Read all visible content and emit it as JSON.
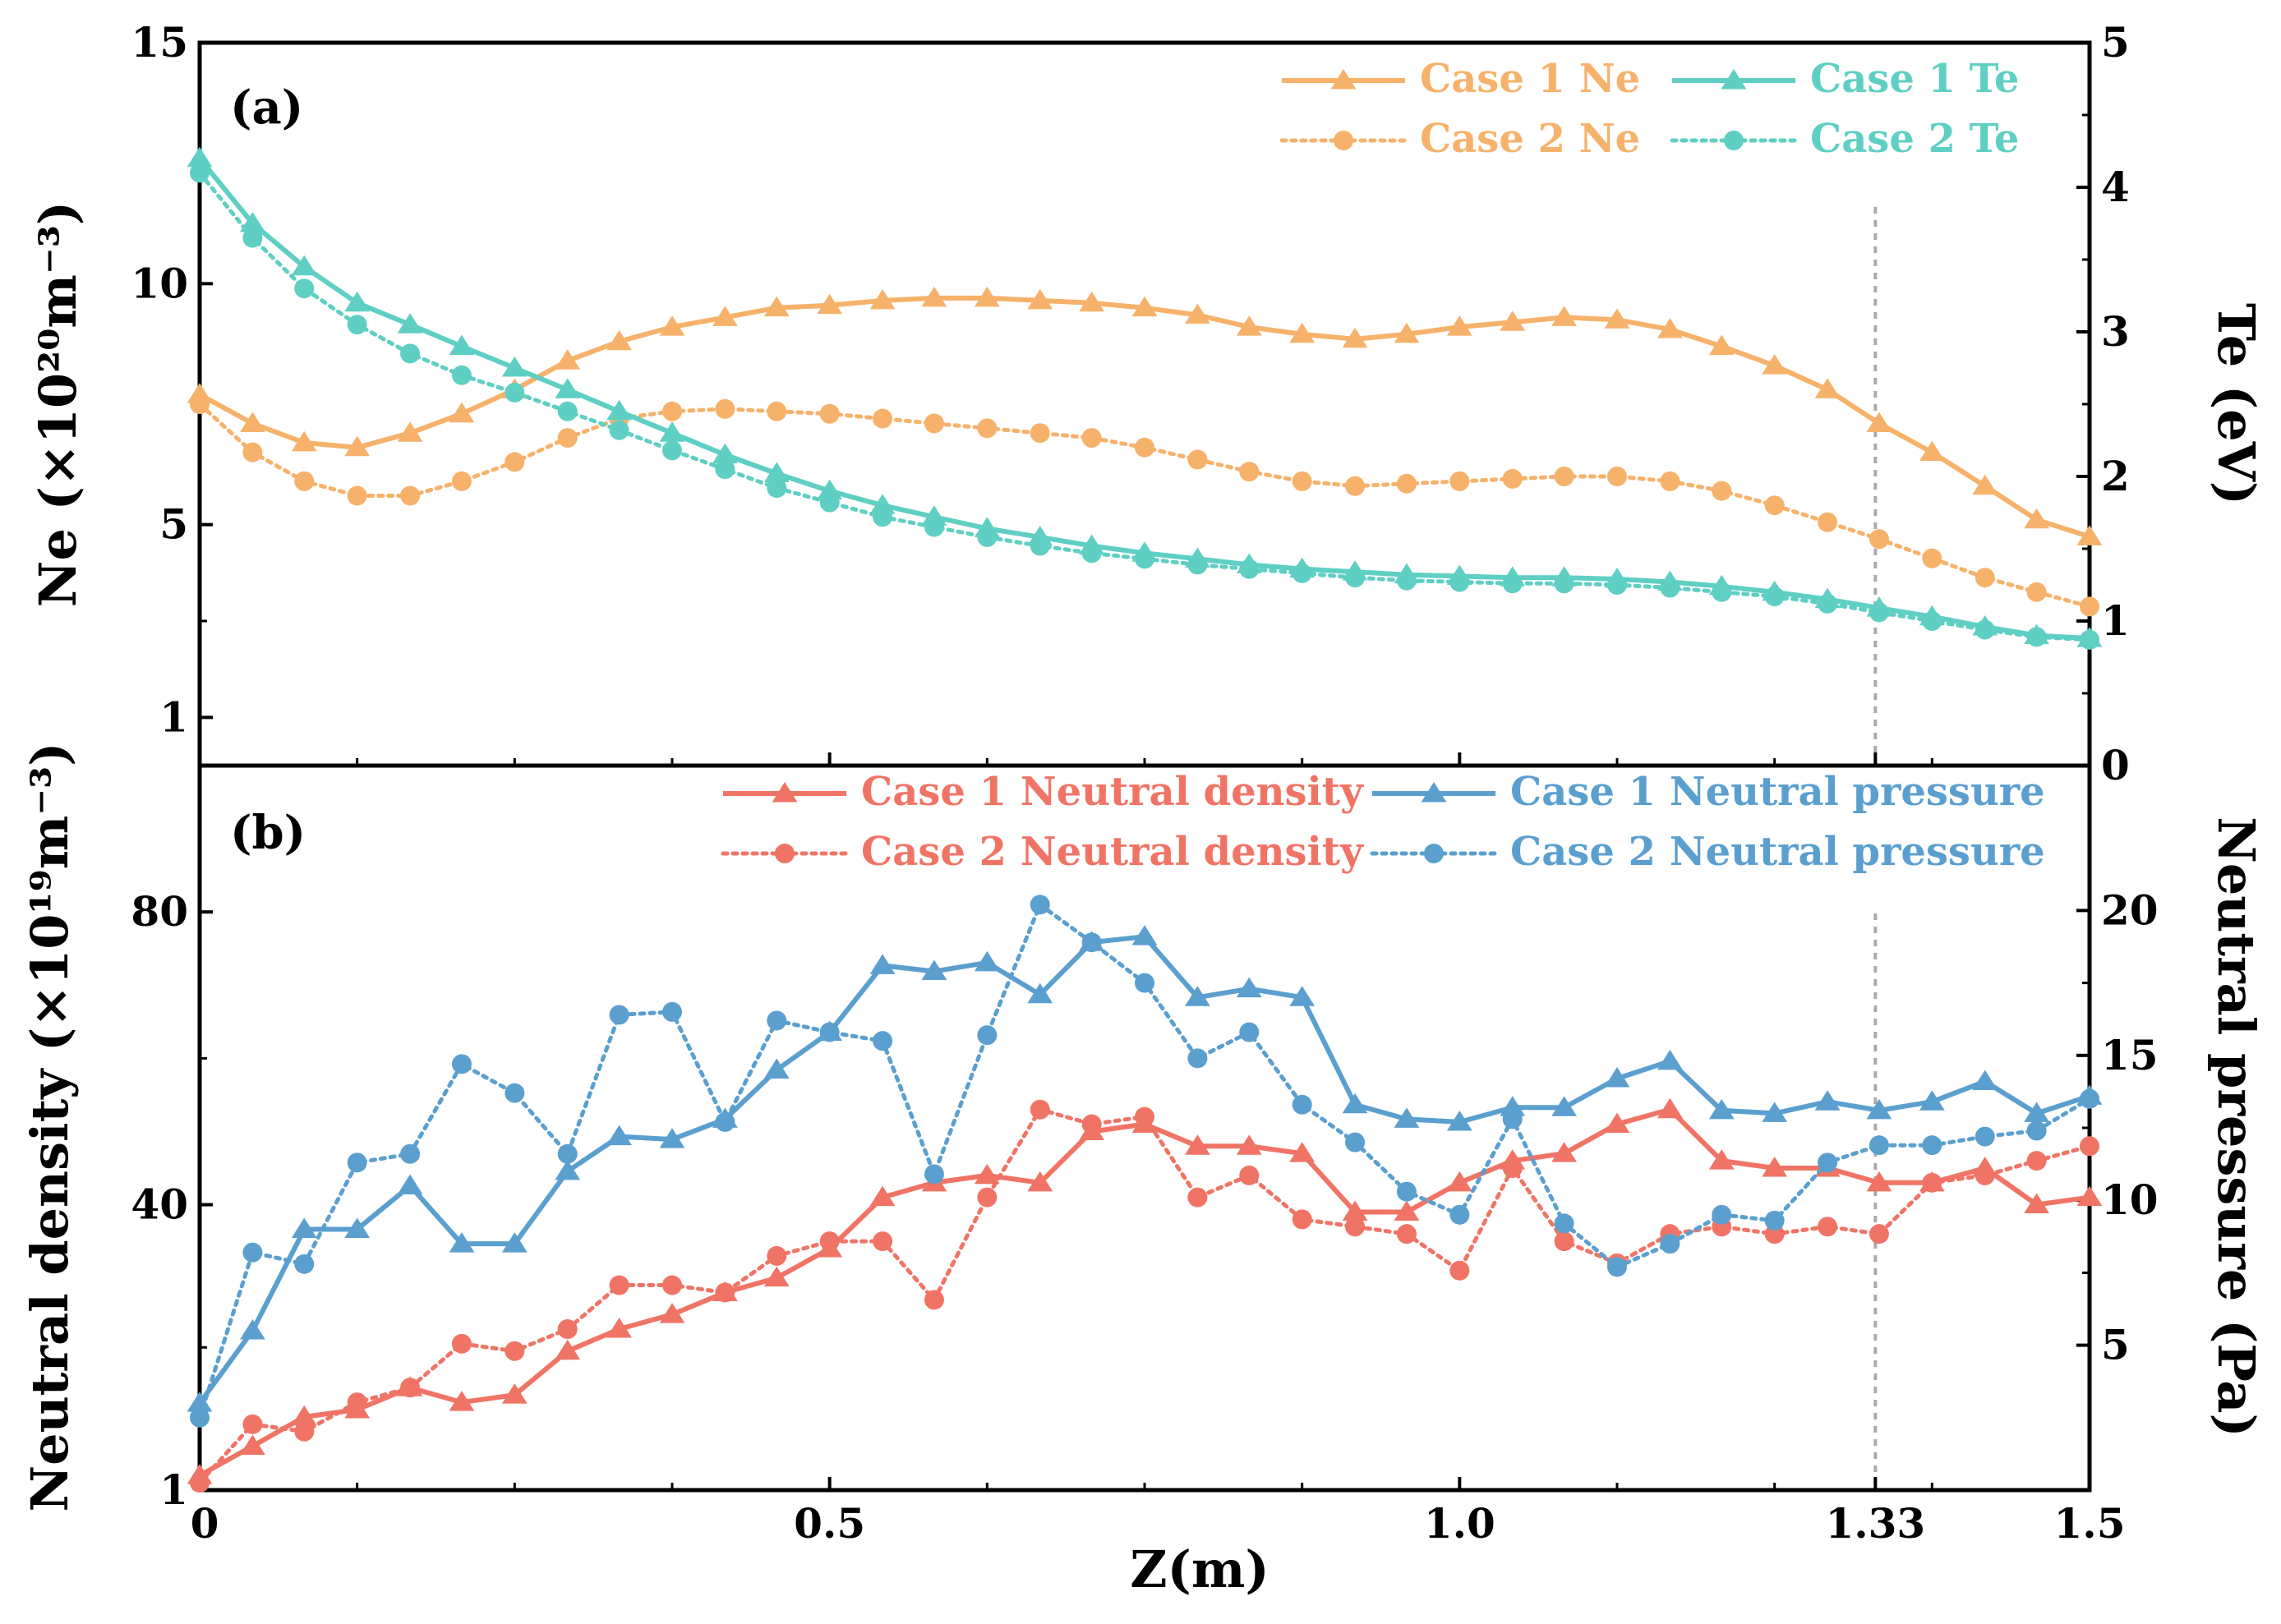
{
  "colors": {
    "case1_ne": "#f6b26b",
    "case2_ne": "#f6b26b",
    "case1_te": "#5fcfc3",
    "case2_te": "#5fcfc3",
    "case1_nd": "#f07466",
    "case2_nd": "#f07466",
    "case1_np": "#5b9fcf",
    "case2_np": "#5b9fcf",
    "marker_line": "#aaaaaa"
  },
  "chart_data": [
    {
      "type": "line",
      "panel_label": "(a)",
      "xlabel": "Z(m)",
      "xlim": [
        0,
        1.5
      ],
      "x_ticks": [
        0,
        0.5,
        1.0,
        1.33,
        1.5
      ],
      "x_tick_labels": [
        "0",
        "0.5",
        "1.0",
        "1.33",
        "1.5"
      ],
      "ylabel_left": "Ne (×10²⁰m⁻³)",
      "ylim_left": [
        0,
        15
      ],
      "yticks_left": [
        1,
        5,
        10,
        15
      ],
      "ylabel_right": "Te (eV)",
      "ylim_right": [
        0,
        5
      ],
      "yticks_right": [
        0,
        1,
        2,
        3,
        4,
        5
      ],
      "vline_x": 1.33,
      "legend_position": "top-right",
      "x": [
        0.0,
        0.042,
        0.083,
        0.125,
        0.167,
        0.208,
        0.25,
        0.292,
        0.333,
        0.375,
        0.417,
        0.458,
        0.5,
        0.542,
        0.583,
        0.625,
        0.667,
        0.708,
        0.75,
        0.792,
        0.833,
        0.875,
        0.917,
        0.958,
        1.0,
        1.042,
        1.083,
        1.125,
        1.167,
        1.208,
        1.25,
        1.292,
        1.333,
        1.375,
        1.417,
        1.458,
        1.5
      ],
      "series": [
        {
          "name": "Case 1 Ne",
          "axis": "left",
          "style": "solid",
          "marker": "triangle",
          "values": [
            7.7,
            7.1,
            6.7,
            6.6,
            6.9,
            7.3,
            7.8,
            8.4,
            8.8,
            9.1,
            9.3,
            9.5,
            9.55,
            9.65,
            9.7,
            9.7,
            9.65,
            9.6,
            9.5,
            9.35,
            9.1,
            8.95,
            8.85,
            8.95,
            9.1,
            9.2,
            9.3,
            9.25,
            9.05,
            8.7,
            8.3,
            7.8,
            7.1,
            6.5,
            5.8,
            5.1,
            4.75
          ]
        },
        {
          "name": "Case 2 Ne",
          "axis": "left",
          "style": "dotted",
          "marker": "circle",
          "values": [
            7.5,
            6.5,
            5.9,
            5.6,
            5.6,
            5.9,
            6.3,
            6.8,
            7.2,
            7.35,
            7.4,
            7.35,
            7.3,
            7.2,
            7.1,
            7.0,
            6.9,
            6.8,
            6.6,
            6.35,
            6.1,
            5.9,
            5.8,
            5.85,
            5.9,
            5.95,
            6.0,
            6.0,
            5.9,
            5.7,
            5.4,
            5.05,
            4.7,
            4.3,
            3.9,
            3.6,
            3.3
          ]
        },
        {
          "name": "Case 1 Te",
          "axis": "right",
          "style": "solid",
          "marker": "triangle",
          "values": [
            4.2,
            3.75,
            3.45,
            3.2,
            3.05,
            2.9,
            2.75,
            2.6,
            2.45,
            2.3,
            2.15,
            2.02,
            1.9,
            1.8,
            1.72,
            1.64,
            1.58,
            1.52,
            1.47,
            1.43,
            1.39,
            1.36,
            1.34,
            1.32,
            1.31,
            1.3,
            1.3,
            1.29,
            1.27,
            1.24,
            1.2,
            1.15,
            1.09,
            1.03,
            0.96,
            0.9,
            0.88
          ]
        },
        {
          "name": "Case 2 Te",
          "axis": "right",
          "style": "dotted",
          "marker": "circle",
          "values": [
            4.1,
            3.65,
            3.3,
            3.05,
            2.85,
            2.7,
            2.58,
            2.45,
            2.32,
            2.18,
            2.05,
            1.92,
            1.82,
            1.72,
            1.65,
            1.58,
            1.52,
            1.47,
            1.43,
            1.39,
            1.36,
            1.33,
            1.3,
            1.28,
            1.27,
            1.26,
            1.26,
            1.25,
            1.23,
            1.2,
            1.17,
            1.12,
            1.06,
            1.0,
            0.94,
            0.89,
            0.87
          ]
        }
      ]
    },
    {
      "type": "line",
      "panel_label": "(b)",
      "xlabel": "Z(m)",
      "xlim": [
        0,
        1.5
      ],
      "x_ticks": [
        0,
        0.5,
        1.0,
        1.33,
        1.5
      ],
      "x_tick_labels": [
        "0",
        "0.5",
        "1.0",
        "1.33",
        "1.5"
      ],
      "ylabel_left": "Neutral density (×10¹⁹m⁻³)",
      "ylim_left": [
        1,
        100
      ],
      "yticks_left": [
        1,
        40,
        80
      ],
      "ylabel_right": "Neutral pressure (Pa)",
      "ylim_right": [
        0,
        25
      ],
      "yticks_right": [
        5,
        10,
        15,
        20
      ],
      "vline_x": 1.33,
      "legend_position": "top-right",
      "x": [
        0.0,
        0.042,
        0.083,
        0.125,
        0.167,
        0.208,
        0.25,
        0.292,
        0.333,
        0.375,
        0.417,
        0.458,
        0.5,
        0.542,
        0.583,
        0.625,
        0.667,
        0.708,
        0.75,
        0.792,
        0.833,
        0.875,
        0.917,
        0.958,
        1.0,
        1.042,
        1.083,
        1.125,
        1.167,
        1.208,
        1.25,
        1.292,
        1.333,
        1.375,
        1.417,
        1.458,
        1.5
      ],
      "series": [
        {
          "name": "Case 1 Neutral density",
          "axis": "left",
          "style": "solid",
          "marker": "triangle",
          "values": [
            3,
            7,
            11,
            12,
            15,
            13,
            14,
            20,
            23,
            25,
            28,
            30,
            34,
            41,
            43,
            44,
            43,
            50,
            51,
            48,
            48,
            47,
            39,
            39,
            43,
            46,
            47,
            51,
            53,
            46,
            45,
            45,
            43,
            43,
            45,
            40,
            41
          ]
        },
        {
          "name": "Case 2 Neutral density",
          "axis": "left",
          "style": "dotted",
          "marker": "circle",
          "values": [
            2,
            10,
            9,
            13,
            15,
            21,
            20,
            23,
            29,
            29,
            28,
            33,
            35,
            35,
            27,
            41,
            53,
            51,
            52,
            41,
            44,
            38,
            37,
            36,
            31,
            45,
            35,
            32,
            36,
            37,
            36,
            37,
            36,
            43,
            44,
            46,
            48
          ]
        },
        {
          "name": "Case 1 Neutral pressure",
          "axis": "right",
          "style": "solid",
          "marker": "triangle",
          "values": [
            3,
            5.5,
            9,
            9,
            10.5,
            8.5,
            8.5,
            11,
            12.2,
            12.1,
            12.8,
            14.5,
            15.8,
            18.1,
            17.9,
            18.2,
            17.1,
            18.9,
            19.1,
            17,
            17.3,
            17,
            13.3,
            12.8,
            12.7,
            13.2,
            13.2,
            14.2,
            14.8,
            13.1,
            13,
            13.4,
            13.1,
            13.4,
            14.1,
            13,
            13.6
          ]
        },
        {
          "name": "Case 2 Neutral pressure",
          "axis": "right",
          "style": "dotted",
          "marker": "circle",
          "values": [
            2.5,
            8.2,
            7.8,
            11.3,
            11.6,
            14.7,
            13.7,
            11.6,
            16.4,
            16.5,
            12.7,
            16.2,
            15.8,
            15.5,
            10.9,
            15.7,
            20.2,
            18.9,
            17.5,
            14.9,
            15.8,
            13.3,
            12,
            10.3,
            9.5,
            12.8,
            9.2,
            7.7,
            8.5,
            9.5,
            9.3,
            11.3,
            11.9,
            11.9,
            12.2,
            12.4,
            13.5
          ]
        }
      ]
    }
  ]
}
